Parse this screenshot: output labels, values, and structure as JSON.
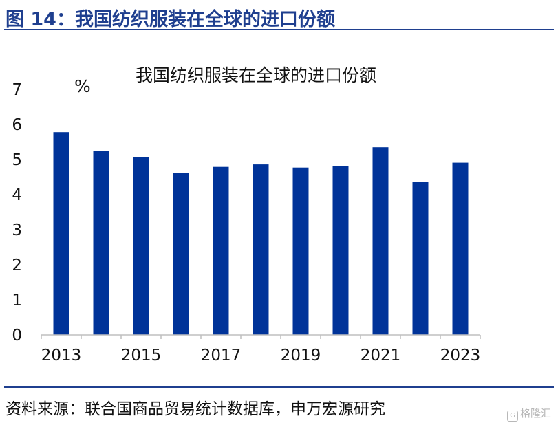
{
  "figure": {
    "title": "图 14：我国纺织服装在全球的进口份额",
    "source": "资料来源：联合国商品贸易统计数据库，申万宏源研究",
    "watermark": "格隆汇"
  },
  "colors": {
    "accent": "#1f3f8f",
    "bar": "#003399"
  },
  "chart_data": {
    "type": "bar",
    "title": "我国纺织服装在全球的进口份额",
    "ylabel": "%",
    "xlabel": "",
    "categories": [
      "2013",
      "2014",
      "2015",
      "2016",
      "2017",
      "2018",
      "2019",
      "2020",
      "2021",
      "2022",
      "2023"
    ],
    "x_tick_labels": [
      "2013",
      "2015",
      "2017",
      "2019",
      "2021",
      "2023"
    ],
    "values": [
      5.78,
      5.25,
      5.07,
      4.61,
      4.79,
      4.86,
      4.77,
      4.82,
      5.35,
      4.36,
      4.91
    ],
    "ylim": [
      0,
      7
    ],
    "y_ticks": [
      0,
      1,
      2,
      3,
      4,
      5,
      6,
      7
    ],
    "grid": false,
    "legend": "none"
  }
}
